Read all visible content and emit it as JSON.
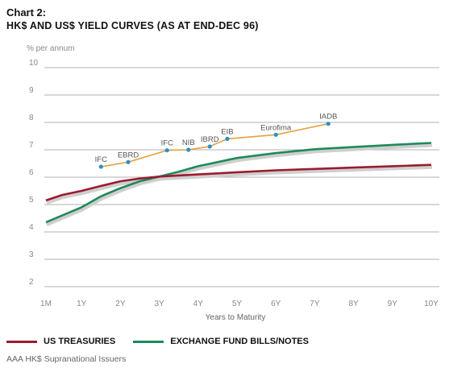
{
  "chart_label": "Chart 2:",
  "chart_title": "HK$ AND US$ YIELD CURVES (AS AT END-DEC 96)",
  "unit_label": "% per annum",
  "footnote": "AAA HK$ Supranational Issuers",
  "colors": {
    "us_treasuries": "#9b1c2e",
    "exchange_fund": "#1e8a5a",
    "supranational": "#e6a23c",
    "supranational_marker": "#2a8fc8",
    "grid": "#999999"
  },
  "chart_data": {
    "type": "line",
    "xlabel": "Years to Maturity",
    "x_categories": [
      "1M",
      "1Y",
      "2Y",
      "3Y",
      "4Y",
      "5Y",
      "6Y",
      "7Y",
      "8Y",
      "9Y",
      "10Y"
    ],
    "x_values": [
      0.0833,
      1,
      2,
      3,
      4,
      5,
      6,
      7,
      8,
      9,
      10
    ],
    "y_ticks": [
      2,
      3,
      4,
      5,
      6,
      7,
      8,
      9,
      10
    ],
    "ylim": [
      2,
      10
    ],
    "xlim": [
      0.0833,
      10
    ],
    "series": [
      {
        "name": "US TREASURIES",
        "color_key": "us_treasuries",
        "points": [
          [
            0.0833,
            5.15
          ],
          [
            0.5,
            5.35
          ],
          [
            1,
            5.5
          ],
          [
            1.5,
            5.68
          ],
          [
            2,
            5.85
          ],
          [
            2.5,
            5.95
          ],
          [
            3,
            6.02
          ],
          [
            4,
            6.1
          ],
          [
            5,
            6.18
          ],
          [
            6,
            6.25
          ],
          [
            7,
            6.3
          ],
          [
            8,
            6.35
          ],
          [
            9,
            6.4
          ],
          [
            10,
            6.45
          ]
        ]
      },
      {
        "name": "EXCHANGE FUND BILLS/NOTES",
        "color_key": "exchange_fund",
        "points": [
          [
            0.0833,
            4.35
          ],
          [
            0.5,
            4.6
          ],
          [
            1,
            4.9
          ],
          [
            1.5,
            5.3
          ],
          [
            2,
            5.6
          ],
          [
            2.5,
            5.85
          ],
          [
            3,
            6.02
          ],
          [
            3.5,
            6.2
          ],
          [
            4,
            6.4
          ],
          [
            4.5,
            6.55
          ],
          [
            5,
            6.7
          ],
          [
            6,
            6.88
          ],
          [
            7,
            7.02
          ],
          [
            8,
            7.1
          ],
          [
            9,
            7.18
          ],
          [
            10,
            7.25
          ]
        ]
      },
      {
        "name": "AAA HK$ Supranational Issuers",
        "color_key": "supranational",
        "marker_color_key": "supranational_marker",
        "points": [
          {
            "x": 1.5,
            "y": 6.38,
            "label": "IFC"
          },
          {
            "x": 2.2,
            "y": 6.55,
            "label": "EBRD"
          },
          {
            "x": 3.2,
            "y": 6.98,
            "label": "IFC"
          },
          {
            "x": 3.75,
            "y": 7.0,
            "label": "NIB"
          },
          {
            "x": 4.3,
            "y": 7.12,
            "label": "IBRD"
          },
          {
            "x": 4.75,
            "y": 7.4,
            "label": "EIB"
          },
          {
            "x": 6.0,
            "y": 7.55,
            "label": "Eurofima"
          },
          {
            "x": 7.35,
            "y": 7.95,
            "label": "IADB"
          }
        ]
      }
    ],
    "grid": true,
    "legend_position": "bottom"
  }
}
